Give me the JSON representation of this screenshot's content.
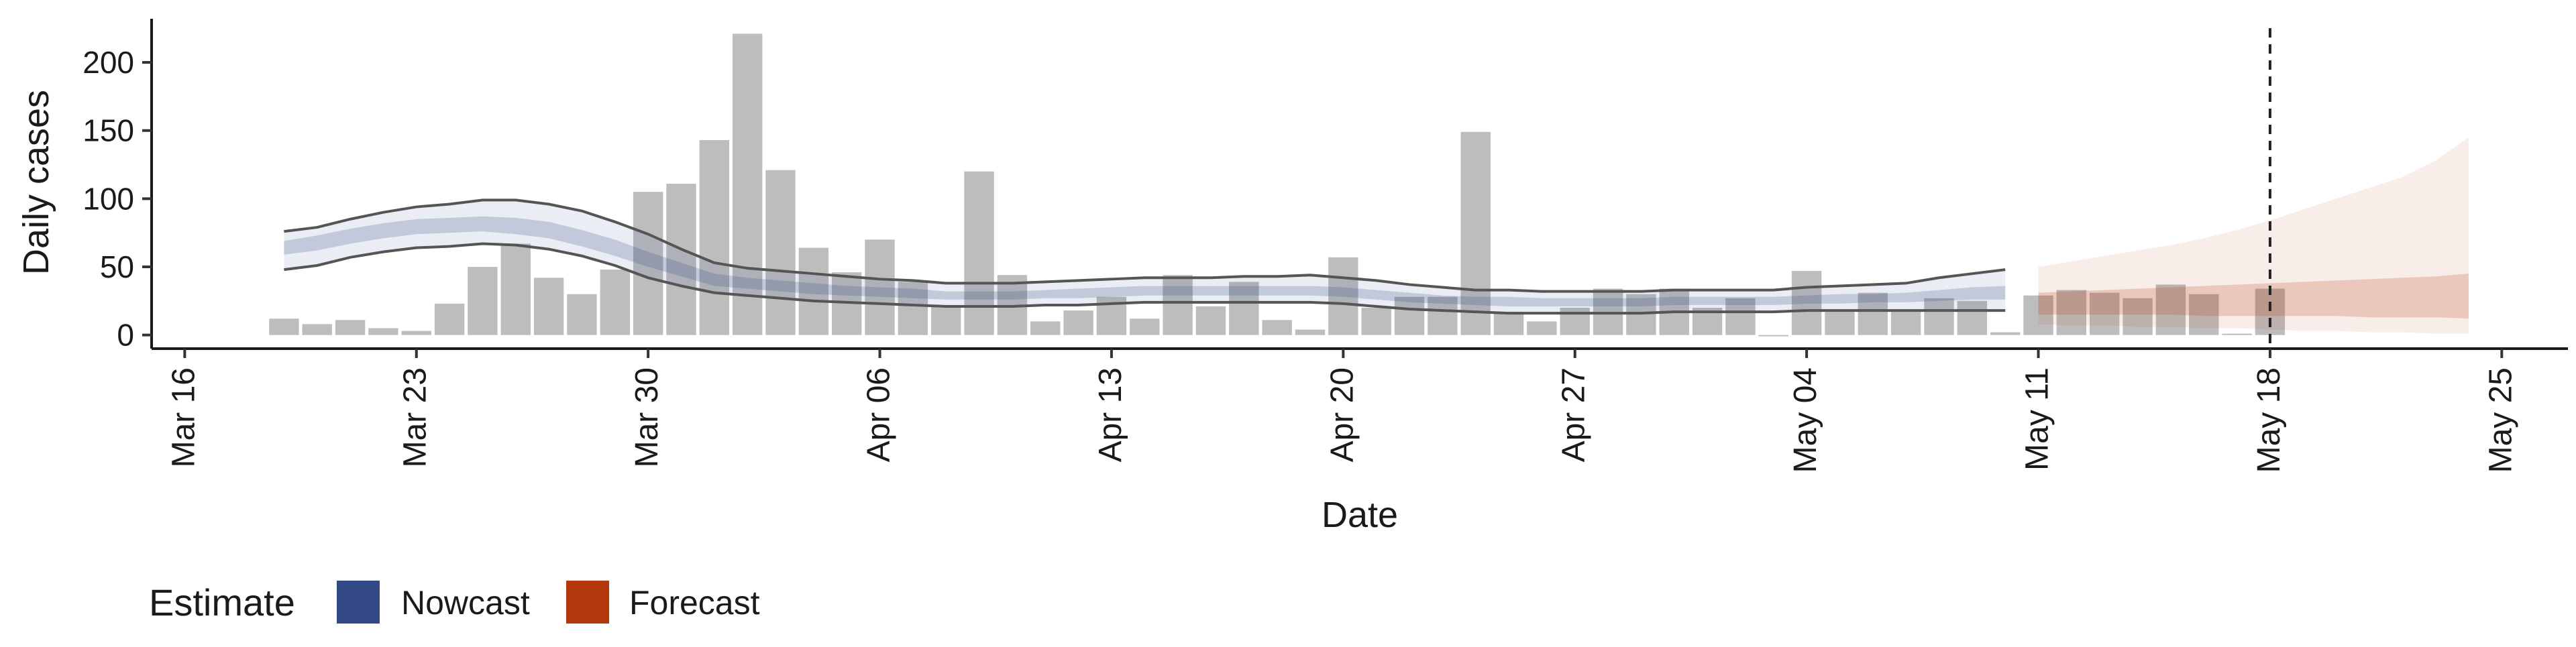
{
  "chart_data": {
    "type": "bar",
    "xlabel": "Date",
    "ylabel": "Daily cases",
    "ylim": [
      -10,
      232
    ],
    "y_ticks": [
      0,
      50,
      100,
      150,
      200
    ],
    "x_ticks": [
      {
        "date": "2020-03-16",
        "label": "Mar 16"
      },
      {
        "date": "2020-03-23",
        "label": "Mar 23"
      },
      {
        "date": "2020-03-30",
        "label": "Mar 30"
      },
      {
        "date": "2020-04-06",
        "label": "Apr 06"
      },
      {
        "date": "2020-04-13",
        "label": "Apr 13"
      },
      {
        "date": "2020-04-20",
        "label": "Apr 20"
      },
      {
        "date": "2020-04-27",
        "label": "Apr 27"
      },
      {
        "date": "2020-05-04",
        "label": "May 04"
      },
      {
        "date": "2020-05-11",
        "label": "May 11"
      },
      {
        "date": "2020-05-18",
        "label": "May 18"
      },
      {
        "date": "2020-05-25",
        "label": "May 25"
      }
    ],
    "xlim": [
      "2020-03-15",
      "2020-05-27"
    ],
    "grid": false,
    "legend": {
      "title": "Estimate",
      "position": "bottom-left",
      "entries": [
        {
          "label": "Nowcast",
          "color": "#344a87"
        },
        {
          "label": "Forecast",
          "color": "#b5380c"
        }
      ]
    },
    "vline_date": "2020-05-18",
    "bar_color": "#bdbdbd",
    "observed_cases": {
      "dates": [
        "2020-03-19",
        "2020-03-20",
        "2020-03-21",
        "2020-03-22",
        "2020-03-23",
        "2020-03-24",
        "2020-03-25",
        "2020-03-26",
        "2020-03-27",
        "2020-03-28",
        "2020-03-29",
        "2020-03-30",
        "2020-03-31",
        "2020-04-01",
        "2020-04-02",
        "2020-04-03",
        "2020-04-04",
        "2020-04-05",
        "2020-04-06",
        "2020-04-07",
        "2020-04-08",
        "2020-04-09",
        "2020-04-10",
        "2020-04-11",
        "2020-04-12",
        "2020-04-13",
        "2020-04-14",
        "2020-04-15",
        "2020-04-16",
        "2020-04-17",
        "2020-04-18",
        "2020-04-19",
        "2020-04-20",
        "2020-04-21",
        "2020-04-22",
        "2020-04-23",
        "2020-04-24",
        "2020-04-25",
        "2020-04-26",
        "2020-04-27",
        "2020-04-28",
        "2020-04-29",
        "2020-04-30",
        "2020-05-01",
        "2020-05-02",
        "2020-05-03",
        "2020-05-04",
        "2020-05-05",
        "2020-05-06",
        "2020-05-07",
        "2020-05-08",
        "2020-05-09",
        "2020-05-10",
        "2020-05-11",
        "2020-05-12",
        "2020-05-13",
        "2020-05-14",
        "2020-05-15",
        "2020-05-16",
        "2020-05-17",
        "2020-05-18"
      ],
      "values": [
        12,
        8,
        11,
        5,
        3,
        23,
        50,
        67,
        42,
        30,
        48,
        105,
        111,
        143,
        221,
        121,
        64,
        46,
        70,
        39,
        22,
        120,
        44,
        10,
        18,
        28,
        12,
        44,
        21,
        39,
        11,
        4,
        57,
        20,
        28,
        28,
        149,
        17,
        10,
        20,
        34,
        30,
        34,
        20,
        27,
        0,
        47,
        17,
        31,
        18,
        27,
        25,
        2,
        29,
        33,
        31,
        27,
        37,
        30,
        1,
        34
      ]
    },
    "nowcast": {
      "dates": [
        "2020-03-19",
        "2020-03-20",
        "2020-03-21",
        "2020-03-22",
        "2020-03-23",
        "2020-03-24",
        "2020-03-25",
        "2020-03-26",
        "2020-03-27",
        "2020-03-28",
        "2020-03-29",
        "2020-03-30",
        "2020-03-31",
        "2020-04-01",
        "2020-04-02",
        "2020-04-03",
        "2020-04-04",
        "2020-04-05",
        "2020-04-06",
        "2020-04-07",
        "2020-04-08",
        "2020-04-09",
        "2020-04-10",
        "2020-04-11",
        "2020-04-12",
        "2020-04-13",
        "2020-04-14",
        "2020-04-15",
        "2020-04-16",
        "2020-04-17",
        "2020-04-18",
        "2020-04-19",
        "2020-04-20",
        "2020-04-21",
        "2020-04-22",
        "2020-04-23",
        "2020-04-24",
        "2020-04-25",
        "2020-04-26",
        "2020-04-27",
        "2020-04-28",
        "2020-04-29",
        "2020-04-30",
        "2020-05-01",
        "2020-05-02",
        "2020-05-03",
        "2020-05-04",
        "2020-05-05",
        "2020-05-06",
        "2020-05-07",
        "2020-05-08",
        "2020-05-09",
        "2020-05-10"
      ],
      "upper_90": [
        76,
        79,
        85,
        90,
        94,
        96,
        99,
        99,
        96,
        91,
        83,
        74,
        63,
        53,
        49,
        47,
        45,
        43,
        41,
        40,
        38,
        38,
        38,
        39,
        40,
        41,
        42,
        42,
        42,
        43,
        43,
        44,
        42,
        40,
        37,
        35,
        33,
        33,
        32,
        32,
        32,
        32,
        33,
        33,
        33,
        33,
        35,
        36,
        37,
        38,
        42,
        45,
        48
      ],
      "upper_50": [
        69,
        73,
        78,
        82,
        85,
        86,
        87,
        86,
        83,
        77,
        70,
        61,
        53,
        45,
        42,
        40,
        38,
        36,
        35,
        34,
        32,
        32,
        32,
        33,
        34,
        35,
        36,
        36,
        36,
        36,
        36,
        36,
        35,
        33,
        31,
        29,
        28,
        28,
        27,
        27,
        27,
        27,
        28,
        28,
        28,
        28,
        29,
        30,
        30,
        31,
        33,
        35,
        36
      ],
      "lower_50": [
        59,
        62,
        67,
        71,
        74,
        75,
        76,
        74,
        71,
        65,
        58,
        50,
        43,
        36,
        34,
        32,
        30,
        29,
        28,
        27,
        26,
        26,
        26,
        27,
        27,
        28,
        29,
        29,
        29,
        29,
        29,
        29,
        28,
        26,
        24,
        23,
        22,
        21,
        21,
        21,
        21,
        21,
        22,
        22,
        22,
        22,
        23,
        23,
        24,
        24,
        25,
        26,
        26
      ],
      "lower_90": [
        48,
        51,
        57,
        61,
        64,
        65,
        67,
        66,
        63,
        58,
        51,
        42,
        36,
        31,
        29,
        27,
        25,
        24,
        23,
        22,
        21,
        21,
        21,
        22,
        22,
        23,
        24,
        24,
        24,
        24,
        24,
        24,
        23,
        21,
        19,
        18,
        17,
        16,
        16,
        16,
        16,
        16,
        17,
        17,
        17,
        17,
        18,
        18,
        18,
        18,
        18,
        18,
        18
      ]
    },
    "forecast": {
      "dates": [
        "2020-05-11",
        "2020-05-12",
        "2020-05-13",
        "2020-05-14",
        "2020-05-15",
        "2020-05-16",
        "2020-05-17",
        "2020-05-18",
        "2020-05-19",
        "2020-05-20",
        "2020-05-21",
        "2020-05-22",
        "2020-05-23",
        "2020-05-24"
      ],
      "upper_90": [
        50,
        54,
        58,
        62,
        66,
        71,
        77,
        84,
        92,
        100,
        108,
        116,
        128,
        145
      ],
      "upper_50": [
        31,
        32,
        33,
        34,
        35,
        36,
        37,
        38,
        39,
        40,
        41,
        42,
        43,
        45
      ],
      "lower_50": [
        15,
        15,
        15,
        15,
        15,
        14,
        14,
        14,
        14,
        14,
        13,
        13,
        13,
        12
      ],
      "lower_90": [
        8,
        7,
        7,
        6,
        6,
        5,
        5,
        4,
        3,
        3,
        2,
        2,
        1,
        1
      ]
    }
  }
}
